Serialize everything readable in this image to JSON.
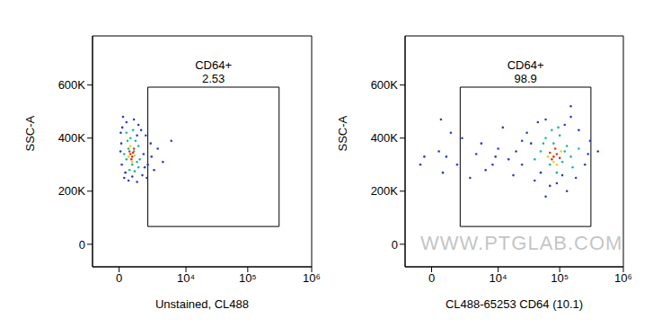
{
  "chart_data": [
    {
      "type": "scatter",
      "xlabel": "Unstained, CL488",
      "ylabel": "SSC-A",
      "log": "x",
      "xlim": [
        -1600,
        1000000
      ],
      "xticks": [
        0,
        {
          "value": 10000,
          "label": "10⁴"
        },
        {
          "value": 100000,
          "label": "10⁵"
        },
        {
          "value": 1000000,
          "label": "10⁶"
        }
      ],
      "ylim": [
        -85000,
        785000
      ],
      "yticks": [
        0,
        {
          "value": 200000,
          "label": "200K"
        },
        {
          "value": 400000,
          "label": "400K"
        },
        {
          "value": 600000,
          "label": "600K"
        }
      ],
      "gate": {
        "name": "CD64+",
        "percent": 2.53,
        "x": [
          1800,
          310000
        ],
        "y": [
          67000,
          592000
        ]
      },
      "series": [
        {
          "color": "#2a3cc4",
          "x": [
            150,
            300,
            700,
            120,
            1200,
            1600,
            2100,
            3000,
            5500,
            200,
            400,
            900,
            1300,
            100,
            1800,
            2500,
            80,
            1000,
            600,
            1400,
            2200,
            3800,
            250,
            1700,
            50,
            900,
            1500,
            60
          ],
          "values": [
            480000,
            460000,
            470000,
            440000,
            430000,
            410000,
            380000,
            360000,
            390000,
            250000,
            240000,
            235000,
            260000,
            300000,
            300000,
            280000,
            380000,
            450000,
            255000,
            340000,
            330000,
            310000,
            270000,
            250000,
            350000,
            410000,
            290000,
            420000
          ]
        },
        {
          "color": "#22b39a",
          "x": [
            300,
            500,
            800,
            400,
            700,
            1000,
            300,
            600,
            900,
            450,
            750,
            1100,
            200,
            350,
            1000,
            650
          ],
          "values": [
            420000,
            400000,
            390000,
            360000,
            350000,
            370000,
            320000,
            300000,
            310000,
            280000,
            275000,
            320000,
            340000,
            390000,
            290000,
            430000
          ]
        },
        {
          "color": "#e6d11c",
          "x": [
            400,
            750,
            500,
            600
          ],
          "values": [
            330000,
            335000,
            370000,
            310000
          ]
        },
        {
          "color": "#e03a1a",
          "x": [
            500,
            600,
            450,
            700,
            550,
            650
          ],
          "values": [
            340000,
            330000,
            350000,
            360000,
            320000,
            345000
          ]
        }
      ]
    },
    {
      "type": "scatter",
      "xlabel": "CL488-65253 CD64 (10.1)",
      "ylabel": "SSC-A",
      "log": "x",
      "watermark": "WWW.PTGLAB.COM",
      "xlim": [
        -1600,
        1000000
      ],
      "xticks": [
        0,
        {
          "value": 10000,
          "label": "10⁴"
        },
        {
          "value": 100000,
          "label": "10⁵"
        },
        {
          "value": 1000000,
          "label": "10⁶"
        }
      ],
      "ylim": [
        -85000,
        785000
      ],
      "yticks": [
        0,
        {
          "value": 200000,
          "label": "200K"
        },
        {
          "value": 400000,
          "label": "400K"
        },
        {
          "value": 600000,
          "label": "600K"
        }
      ],
      "gate": {
        "name": "CD64+",
        "percent": 98.9,
        "x": [
          1800,
          310000
        ],
        "y": [
          67000,
          592000
        ]
      },
      "series": [
        {
          "color": "#2a3cc4",
          "x": [
            30000,
            45000,
            60000,
            120000,
            200000,
            300000,
            400000,
            250000,
            180000,
            90000,
            40000,
            25000,
            20000,
            35000,
            150000,
            70000,
            110000,
            280000,
            50000,
            15000,
            10000,
            8000,
            6000,
            4000,
            3000,
            2000,
            1500,
            1000,
            700,
            500,
            12000,
            18000,
            25000,
            9000,
            5000,
            300,
            -300,
            -500,
            150000,
            60000,
            130000,
            400
          ],
          "values": [
            420000,
            460000,
            470000,
            450000,
            430000,
            390000,
            350000,
            300000,
            250000,
            230000,
            240000,
            300000,
            350000,
            380000,
            480000,
            220000,
            260000,
            340000,
            270000,
            320000,
            360000,
            300000,
            280000,
            340000,
            250000,
            400000,
            300000,
            420000,
            330000,
            270000,
            440000,
            260000,
            390000,
            330000,
            380000,
            350000,
            330000,
            300000,
            520000,
            180000,
            200000,
            470000
          ]
        },
        {
          "color": "#22b39a",
          "x": [
            60000,
            80000,
            100000,
            130000,
            50000,
            70000,
            110000,
            150000,
            90000,
            40000,
            160000,
            120000,
            75000,
            55000,
            200000,
            95000
          ],
          "values": [
            400000,
            380000,
            410000,
            370000,
            350000,
            300000,
            310000,
            330000,
            270000,
            320000,
            290000,
            350000,
            430000,
            380000,
            360000,
            440000
          ]
        },
        {
          "color": "#e6d11c",
          "x": [
            90000,
            65000,
            105000,
            80000
          ],
          "values": [
            300000,
            330000,
            350000,
            310000
          ]
        },
        {
          "color": "#e03a1a",
          "x": [
            80000,
            90000,
            70000,
            100000,
            85000,
            75000
          ],
          "values": [
            330000,
            340000,
            345000,
            325000,
            360000,
            320000
          ]
        }
      ]
    }
  ]
}
